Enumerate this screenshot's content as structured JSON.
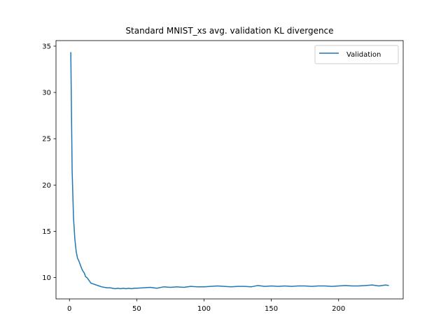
{
  "chart_data": {
    "type": "line",
    "title": "Standard MNIST_xs avg. validation KL divergence",
    "xlabel": "",
    "ylabel": "",
    "xlim": [
      -10,
      248
    ],
    "ylim": [
      7.7,
      35.6
    ],
    "x_ticks": [
      0,
      50,
      100,
      150,
      200
    ],
    "y_ticks": [
      10,
      15,
      20,
      25,
      30,
      35
    ],
    "grid": false,
    "legend": {
      "position": "top-right",
      "entries": [
        "Validation"
      ]
    },
    "series": [
      {
        "name": "Validation",
        "color": "#1f77b4",
        "x": [
          1,
          2,
          3,
          4,
          5,
          6,
          7,
          8,
          9,
          10,
          11,
          12,
          13,
          14,
          15,
          16,
          17,
          18,
          19,
          20,
          22,
          24,
          26,
          28,
          30,
          32,
          34,
          36,
          38,
          40,
          42,
          44,
          46,
          48,
          50,
          55,
          60,
          65,
          70,
          75,
          80,
          85,
          90,
          95,
          100,
          105,
          110,
          115,
          120,
          125,
          130,
          135,
          140,
          145,
          150,
          155,
          160,
          165,
          170,
          175,
          180,
          185,
          190,
          195,
          200,
          205,
          210,
          215,
          220,
          225,
          230,
          235,
          237
        ],
        "y": [
          34.3,
          21.5,
          16.5,
          14.2,
          12.8,
          12.1,
          11.8,
          11.4,
          11.0,
          10.7,
          10.5,
          10.1,
          10.0,
          9.8,
          9.6,
          9.4,
          9.35,
          9.3,
          9.25,
          9.2,
          9.1,
          9.0,
          8.95,
          8.9,
          8.9,
          8.85,
          8.8,
          8.85,
          8.8,
          8.85,
          8.8,
          8.85,
          8.8,
          8.85,
          8.85,
          8.9,
          8.95,
          8.85,
          9.0,
          8.95,
          9.0,
          8.95,
          9.05,
          9.0,
          9.0,
          9.05,
          9.1,
          9.05,
          9.0,
          9.05,
          9.05,
          9.0,
          9.15,
          9.05,
          9.1,
          9.05,
          9.1,
          9.05,
          9.1,
          9.1,
          9.05,
          9.1,
          9.1,
          9.05,
          9.1,
          9.15,
          9.1,
          9.1,
          9.15,
          9.2,
          9.1,
          9.2,
          9.15
        ]
      }
    ]
  }
}
